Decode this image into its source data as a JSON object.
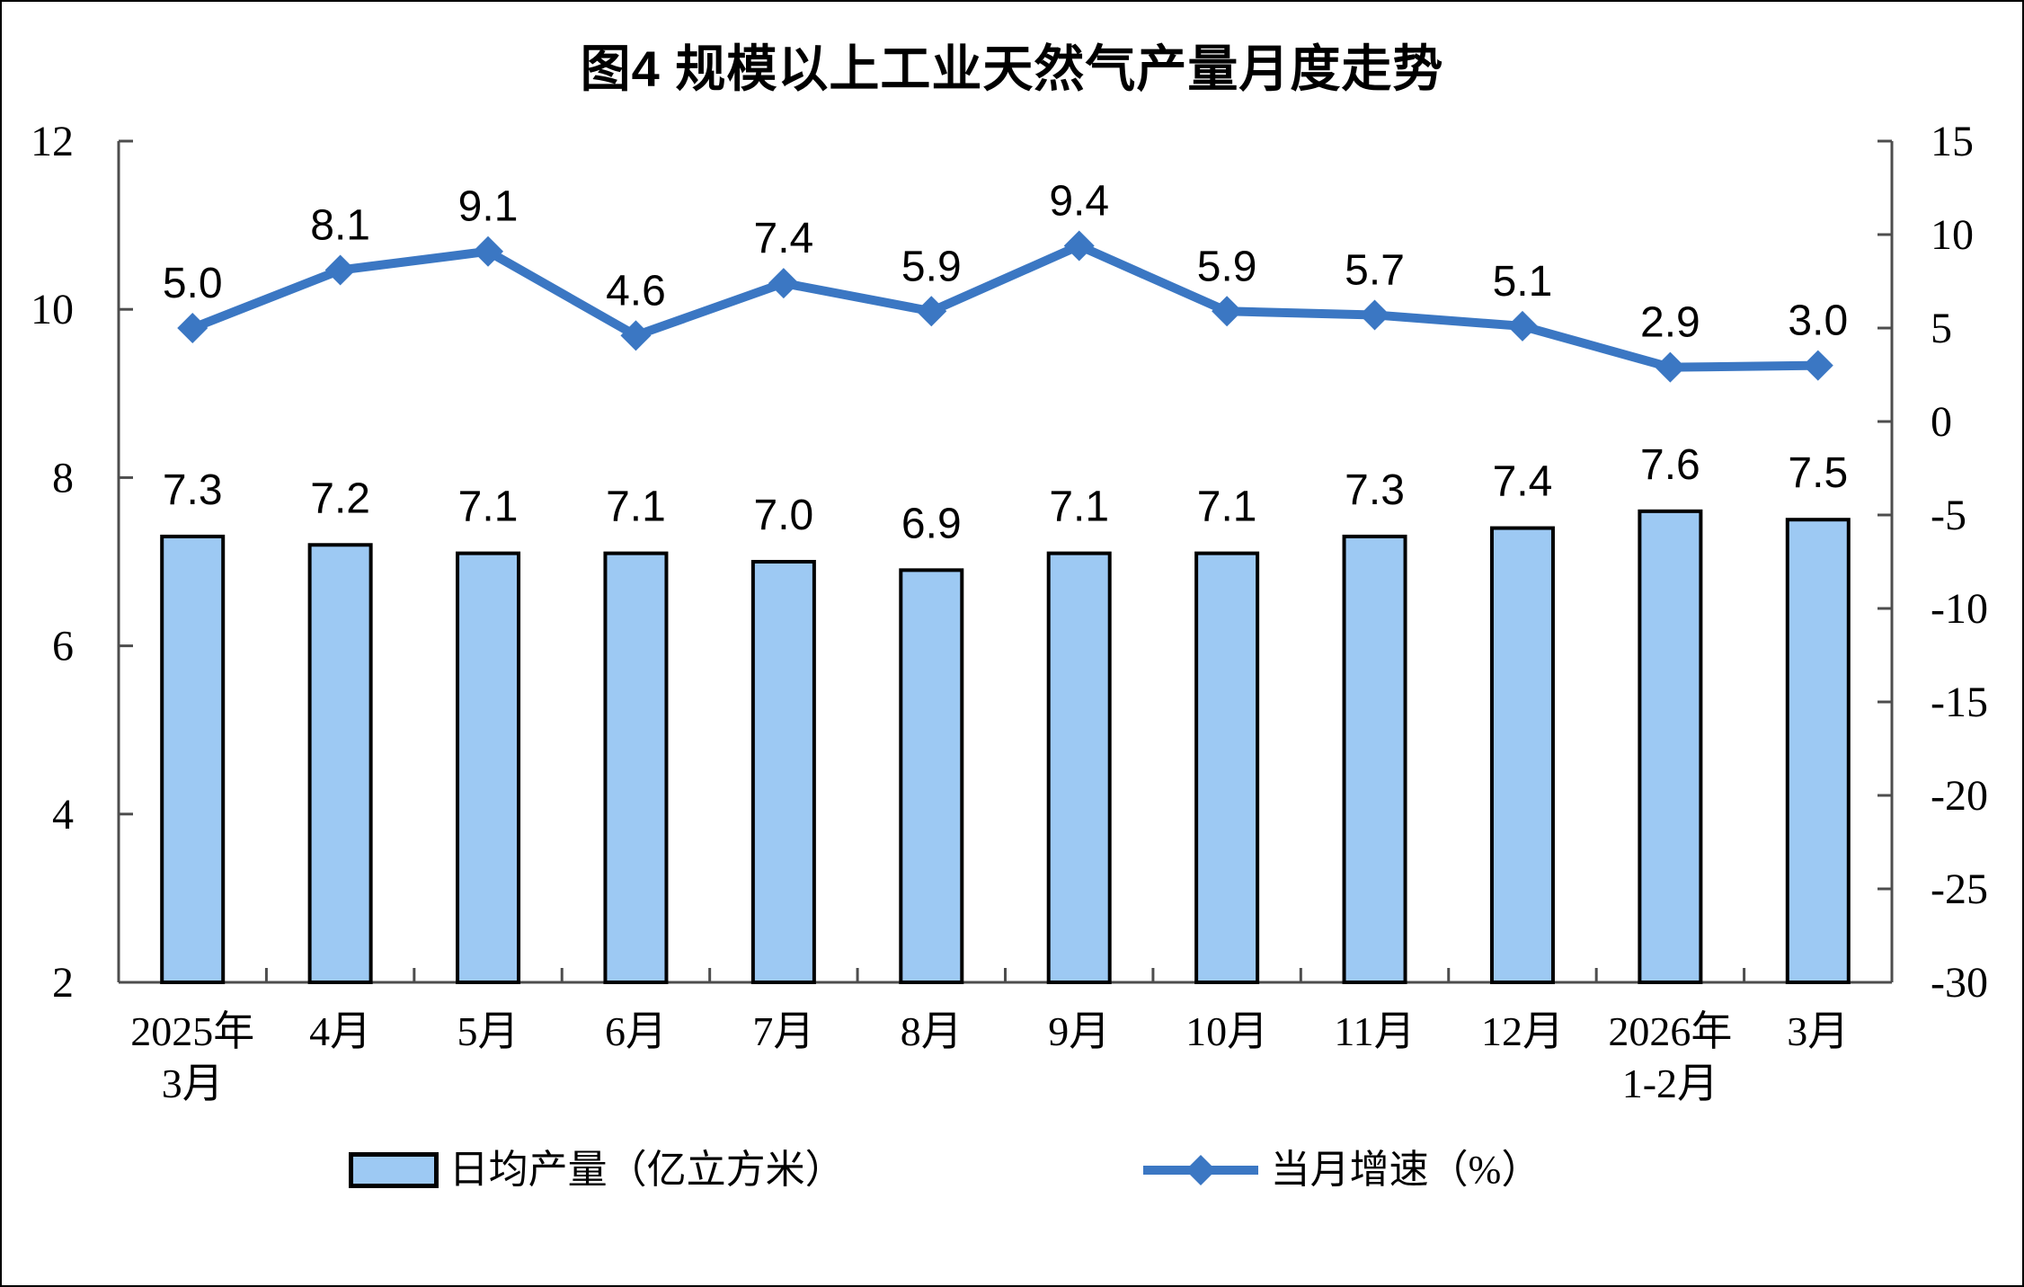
{
  "chart_data": {
    "type": "combo_bar_line",
    "title": "图4 规模以上工业天然气产量月度走势",
    "categories": [
      "2025年\n3月",
      "4月",
      "5月",
      "6月",
      "7月",
      "8月",
      "9月",
      "10月",
      "11月",
      "12月",
      "2026年\n1-2月",
      "3月"
    ],
    "series": [
      {
        "name": "日均产量（亿立方米）",
        "type": "bar",
        "axis": "left",
        "values": [
          7.3,
          7.2,
          7.1,
          7.1,
          7.0,
          6.9,
          7.1,
          7.1,
          7.3,
          7.4,
          7.6,
          7.5
        ],
        "labels": [
          "7.3",
          "7.2",
          "7.1",
          "7.1",
          "7.0",
          "6.9",
          "7.1",
          "7.1",
          "7.3",
          "7.4",
          "7.6",
          "7.5"
        ]
      },
      {
        "name": "当月增速（%）",
        "type": "line",
        "axis": "right",
        "values": [
          5.0,
          8.1,
          9.1,
          4.6,
          7.4,
          5.9,
          9.4,
          5.9,
          5.7,
          5.1,
          2.9,
          3.0
        ],
        "labels": [
          "5.0",
          "8.1",
          "9.1",
          "4.6",
          "7.4",
          "5.9",
          "9.4",
          "5.9",
          "5.7",
          "5.1",
          "2.9",
          "3.0"
        ]
      }
    ],
    "left_axis": {
      "min": 2,
      "max": 12,
      "tick_values": [
        12,
        10,
        8,
        6,
        4,
        2
      ],
      "tick_labels": [
        "12",
        "10",
        "8",
        "6",
        "4",
        "2"
      ]
    },
    "right_axis": {
      "min": -30,
      "max": 15,
      "tick_values": [
        15,
        10,
        5,
        0,
        -5,
        -10,
        -15,
        -20,
        -25,
        -30
      ],
      "tick_labels": [
        "15",
        "10",
        "5",
        "0",
        "-5",
        "-10",
        "-15",
        "-20",
        "-25",
        "-30"
      ]
    },
    "grid": false,
    "legend_position": "bottom",
    "colors": {
      "bar_fill": "#9DC9F3",
      "bar_border": "#000000",
      "line": "#3B77C3",
      "axis_line": "#4D4D4D",
      "text": "#000000",
      "background": "#FFFFFF"
    }
  }
}
